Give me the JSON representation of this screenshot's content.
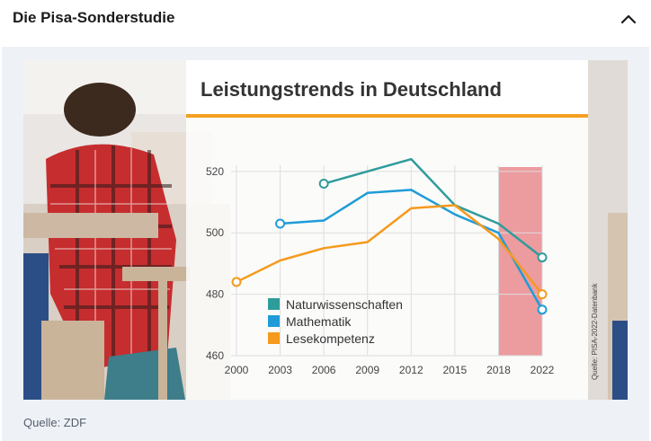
{
  "header": {
    "title": "Die Pisa-Sonderstudie"
  },
  "footer": {
    "source": "Quelle: ZDF"
  },
  "colors": {
    "panel": "#eef2f7",
    "accent": "#f5a020",
    "highlight": "#e77b80"
  },
  "chart_data": {
    "type": "line",
    "title": "Leistungstrends in Deutschland",
    "x": [
      2000,
      2003,
      2006,
      2009,
      2012,
      2015,
      2018,
      2022
    ],
    "ylim": [
      460,
      522
    ],
    "yticks": [
      460,
      480,
      500,
      520
    ],
    "grid": true,
    "highlight_range": [
      2018,
      2022
    ],
    "series": [
      {
        "name": "Naturwissenschaften",
        "color": "#2e9c9b",
        "x": [
          2006,
          2009,
          2012,
          2015,
          2018,
          2022
        ],
        "values": [
          516,
          520,
          524,
          509,
          503,
          492
        ]
      },
      {
        "name": "Mathematik",
        "color": "#1f9cd8",
        "x": [
          2003,
          2006,
          2009,
          2012,
          2015,
          2018,
          2022
        ],
        "values": [
          503,
          504,
          513,
          514,
          506,
          500,
          475
        ]
      },
      {
        "name": "Lesekompetenz",
        "color": "#f59a1d",
        "x": [
          2000,
          2003,
          2006,
          2009,
          2012,
          2015,
          2018,
          2022
        ],
        "values": [
          484,
          491,
          495,
          497,
          508,
          509,
          498,
          480
        ]
      }
    ],
    "legend": "bottom-left",
    "side_note": "Quelle: PISA-2022-Datenbank"
  }
}
